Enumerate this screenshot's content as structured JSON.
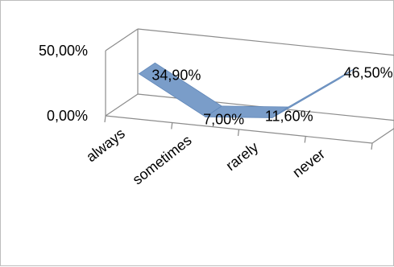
{
  "chart_data": {
    "type": "line",
    "title": "",
    "xlabel": "",
    "ylabel": "",
    "categories": [
      "always",
      "sometimes",
      "rarely",
      "never"
    ],
    "series": [
      {
        "values": [
          34.9,
          7.0,
          11.6,
          46.5
        ],
        "color": "#7a9dc9"
      }
    ],
    "data_labels": [
      "34,90%",
      "7,00%",
      "11,60%",
      "46,50%"
    ],
    "y_ticks": [
      {
        "value": 0,
        "label": "0,00%"
      },
      {
        "value": 50,
        "label": "50,00%"
      }
    ],
    "ylim": [
      0,
      50
    ],
    "grid": true,
    "legend": "none",
    "view": "3d"
  }
}
